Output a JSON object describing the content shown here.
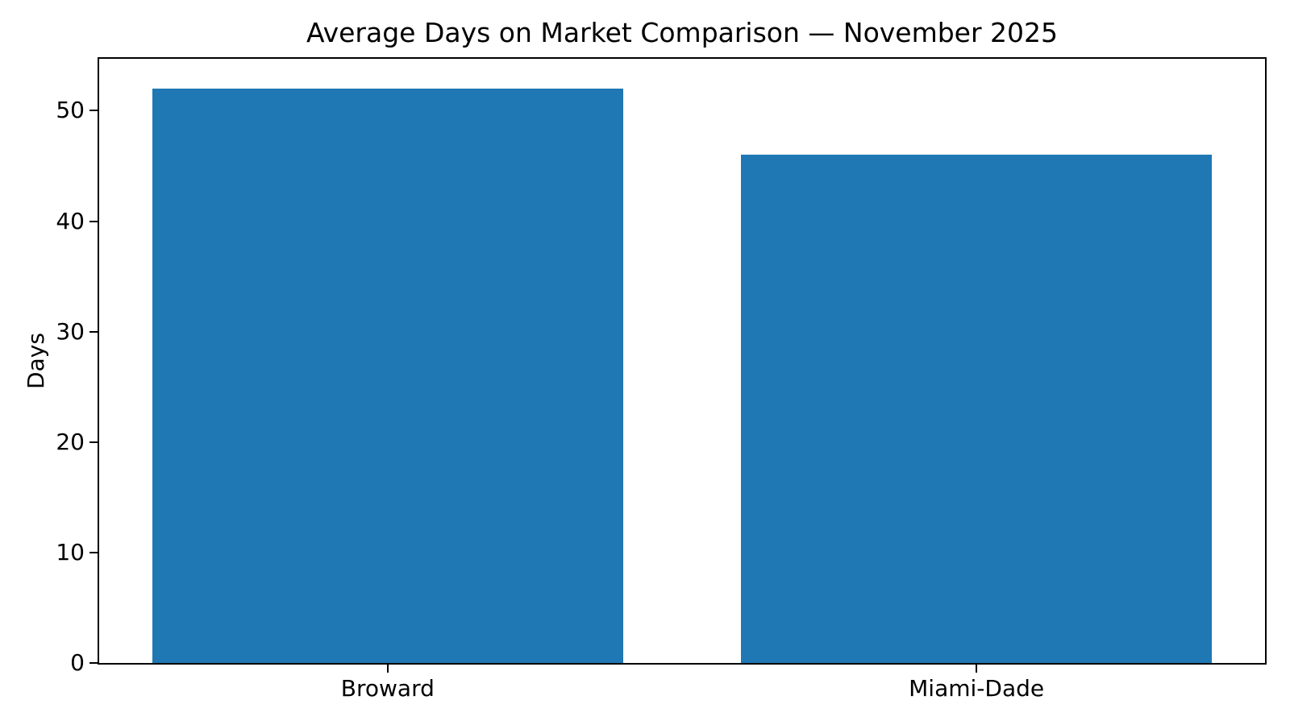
{
  "chart_data": {
    "type": "bar",
    "title": "Average Days on Market Comparison — November 2025",
    "categories": [
      "Broward",
      "Miami-Dade"
    ],
    "values": [
      52,
      46
    ],
    "xlabel": "",
    "ylabel": "Days",
    "yticks": [
      0,
      10,
      20,
      30,
      40,
      50
    ],
    "ylim": [
      0,
      54.7
    ],
    "bar_color": "#1f77b4",
    "axis_color": "#000000",
    "background_color": "#ffffff",
    "grid": false,
    "legend": "none"
  }
}
